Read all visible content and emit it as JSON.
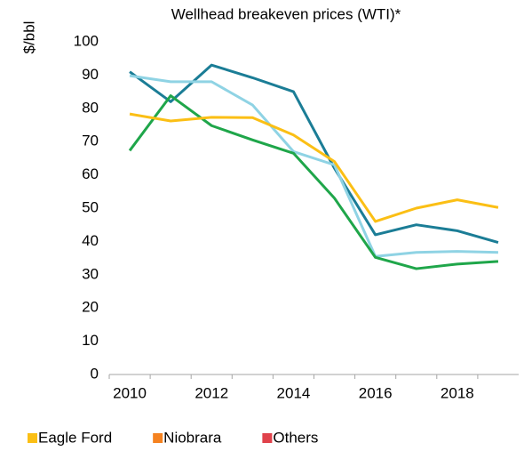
{
  "chart_data": {
    "type": "line",
    "title": "Wellhead breakeven prices (WTI)*",
    "y_label": "$/bbl",
    "categories": [
      "2010",
      null,
      "2012",
      null,
      "2014",
      null,
      "2016",
      null,
      "2018",
      null
    ],
    "series": [
      {
        "color": "#1b7d96",
        "values": [
          91,
          82,
          93,
          89.2,
          85,
          62,
          42,
          45,
          43.2,
          39.7
        ]
      },
      {
        "color": "#8fd3e4",
        "values": [
          89.8,
          88,
          88,
          81,
          67,
          63,
          35.5,
          36.7,
          37,
          36.7
        ]
      },
      {
        "color": "#1fa64a",
        "values": [
          67.3,
          83.8,
          74.8,
          70.5,
          66.5,
          53,
          35.2,
          31.8,
          33.2,
          34
        ]
      },
      {
        "name": "Eagle Ford",
        "color": "#fbbf15",
        "values": [
          78.3,
          76.2,
          77.3,
          77.2,
          72,
          64,
          46,
          50,
          52.5,
          50.2
        ]
      },
      {
        "name": "Niobrara",
        "color": "#f58220",
        "values": [
          null,
          null,
          null,
          null,
          null,
          null,
          null,
          null,
          null,
          null
        ]
      },
      {
        "name": "Others",
        "color": "#e0424b",
        "values": [
          null,
          null,
          null,
          null,
          null,
          null,
          null,
          null,
          null,
          null
        ]
      }
    ],
    "ylim": [
      0,
      100
    ],
    "yticks": [
      0,
      10,
      20,
      30,
      40,
      50,
      60,
      70,
      80,
      90,
      100
    ],
    "grid": false,
    "legend": "bottom"
  }
}
